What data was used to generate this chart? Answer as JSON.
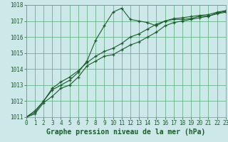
{
  "title": "Graphe pression niveau de la mer (hPa)",
  "background_color": "#cce8e8",
  "grid_color": "#55aa77",
  "line_color": "#1a5c2a",
  "x": [
    0,
    1,
    2,
    3,
    4,
    5,
    6,
    7,
    8,
    9,
    10,
    11,
    12,
    13,
    14,
    15,
    16,
    17,
    18,
    19,
    20,
    21,
    22,
    23
  ],
  "line1_y": [
    1011.0,
    1011.4,
    1012.0,
    1012.7,
    1013.0,
    1013.3,
    1013.8,
    1014.5,
    1015.8,
    1016.7,
    1017.55,
    1017.8,
    1017.1,
    1017.0,
    1016.9,
    1016.7,
    1017.0,
    1017.1,
    1017.1,
    1017.15,
    1017.3,
    1017.3,
    1017.5,
    1017.6
  ],
  "line2_y": [
    1011.0,
    1011.3,
    1012.0,
    1012.8,
    1013.2,
    1013.5,
    1013.9,
    1014.4,
    1014.8,
    1015.1,
    1015.3,
    1015.6,
    1016.0,
    1016.2,
    1016.5,
    1016.8,
    1017.0,
    1017.15,
    1017.2,
    1017.28,
    1017.35,
    1017.4,
    1017.55,
    1017.65
  ],
  "line3_y": [
    1011.0,
    1011.2,
    1011.9,
    1012.3,
    1012.8,
    1013.0,
    1013.5,
    1014.2,
    1014.5,
    1014.8,
    1014.9,
    1015.2,
    1015.5,
    1015.7,
    1016.0,
    1016.3,
    1016.7,
    1016.9,
    1017.0,
    1017.1,
    1017.2,
    1017.3,
    1017.45,
    1017.55
  ],
  "ylim": [
    1011,
    1018
  ],
  "yticks": [
    1011,
    1012,
    1013,
    1014,
    1015,
    1016,
    1017,
    1018
  ],
  "xlim": [
    0,
    23
  ],
  "xticks": [
    0,
    1,
    2,
    3,
    4,
    5,
    6,
    7,
    8,
    9,
    10,
    11,
    12,
    13,
    14,
    15,
    16,
    17,
    18,
    19,
    20,
    21,
    22,
    23
  ],
  "xlabel_fontsize": 7.0,
  "tick_fontsize": 5.5,
  "marker_size": 3.5,
  "line_width": 0.8
}
